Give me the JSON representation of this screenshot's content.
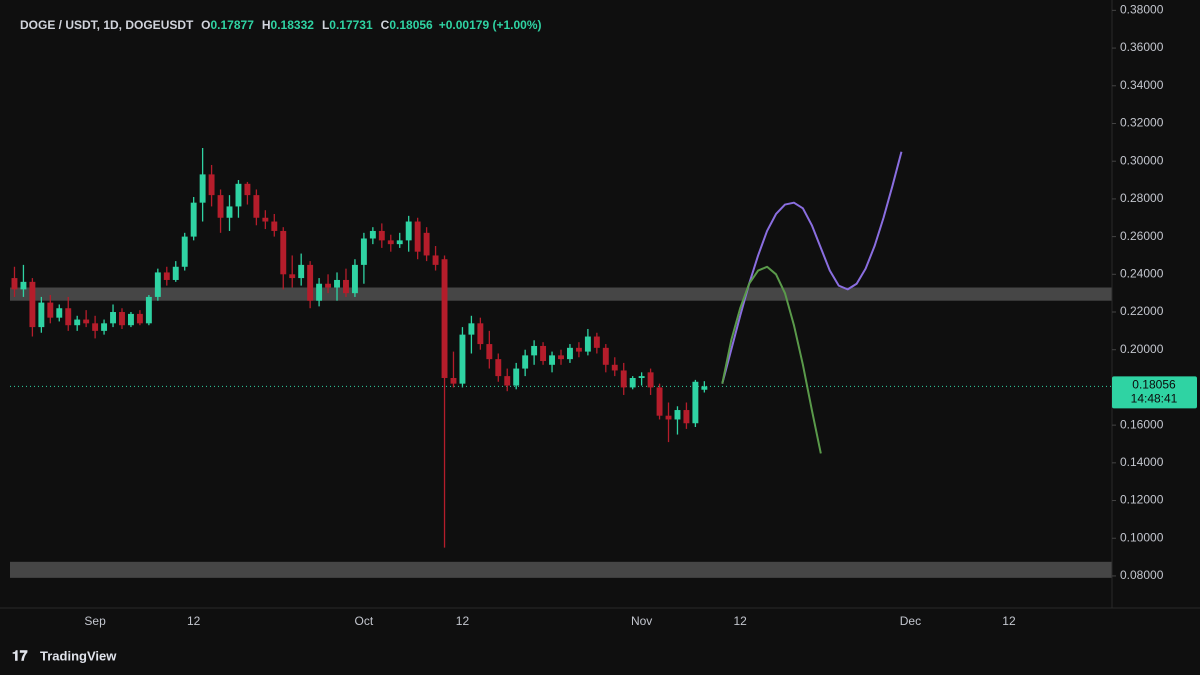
{
  "chart_data": {
    "type": "candlestick",
    "header": {
      "symbol": "DOGE / USDT, 1D, DOGEUSDT",
      "ohlc": [
        {
          "label": "O",
          "value": 0.17877
        },
        {
          "label": "H",
          "value": 0.18332
        },
        {
          "label": "L",
          "value": 0.17731
        },
        {
          "label": "C",
          "value": 0.18056
        }
      ],
      "change": "+0.00179 (+1.00%)"
    },
    "brand": "TradingView",
    "categories": [
      null,
      null,
      null,
      null,
      null,
      null,
      null,
      null,
      null,
      "Sep",
      null,
      null,
      null,
      null,
      null,
      null,
      null,
      null,
      null,
      null,
      "12",
      null,
      null,
      null,
      null,
      null,
      null,
      null,
      null,
      null,
      null,
      null,
      null,
      null,
      null,
      null,
      null,
      null,
      null,
      "Oct",
      null,
      null,
      null,
      null,
      null,
      null,
      null,
      null,
      null,
      null,
      "12",
      null,
      null,
      null,
      null,
      null,
      null,
      null,
      null,
      null,
      null,
      null,
      null,
      null,
      null,
      null,
      null,
      null,
      null,
      null,
      "Nov",
      null,
      null,
      null,
      null,
      null,
      null,
      null,
      null,
      null,
      null,
      "12",
      null,
      null,
      null,
      null,
      null,
      null,
      null,
      null,
      null,
      null,
      null,
      null,
      null,
      null,
      null,
      null,
      null,
      null,
      "Dec",
      null,
      null,
      null,
      null,
      null,
      null,
      null,
      null,
      null,
      null,
      "12",
      null,
      null,
      null,
      null,
      null,
      null,
      null,
      null,
      null,
      null,
      null
    ],
    "open": [
      0.238,
      0.232,
      0.236,
      0.212,
      0.225,
      0.217,
      0.222,
      0.213,
      0.216,
      0.214,
      0.21,
      0.214,
      0.22,
      0.213,
      0.219,
      0.214,
      0.228,
      0.241,
      0.237,
      0.244,
      0.26,
      0.278,
      0.293,
      0.282,
      0.27,
      0.276,
      0.288,
      0.282,
      0.27,
      0.268,
      0.263,
      0.24,
      0.238,
      0.245,
      0.226,
      0.235,
      0.233,
      0.237,
      0.23,
      0.245,
      0.259,
      0.263,
      0.258,
      0.256,
      0.258,
      0.268,
      0.262,
      0.25,
      0.248,
      0.185,
      0.182,
      0.208,
      0.214,
      0.203,
      0.195,
      0.186,
      0.181,
      0.19,
      0.197,
      0.202,
      0.192,
      0.197,
      0.195,
      0.201,
      0.199,
      0.207,
      0.201,
      0.192,
      0.189,
      0.18,
      0.185,
      0.188,
      0.18,
      0.165,
      0.163,
      0.168,
      0.161,
      0.17877,
      null,
      null,
      null,
      null,
      null,
      null,
      null,
      null,
      null,
      null,
      null,
      null,
      null,
      null,
      null,
      null,
      null,
      null,
      null,
      null,
      null,
      null,
      null,
      null,
      null,
      null,
      null,
      null,
      null,
      null,
      null,
      null,
      null,
      null,
      null,
      null,
      null,
      null,
      null,
      null,
      null,
      null,
      null,
      null,
      null
    ],
    "high": [
      0.244,
      0.245,
      0.238,
      0.228,
      0.229,
      0.224,
      0.228,
      0.218,
      0.221,
      0.218,
      0.216,
      0.224,
      0.222,
      0.22,
      0.221,
      0.229,
      0.243,
      0.244,
      0.247,
      0.262,
      0.281,
      0.307,
      0.298,
      0.285,
      0.282,
      0.29,
      0.289,
      0.285,
      0.274,
      0.272,
      0.265,
      0.25,
      0.251,
      0.247,
      0.238,
      0.24,
      0.241,
      0.243,
      0.248,
      0.262,
      0.265,
      0.267,
      0.261,
      0.262,
      0.271,
      0.27,
      0.265,
      0.255,
      0.25,
      0.199,
      0.212,
      0.218,
      0.217,
      0.21,
      0.198,
      0.19,
      0.193,
      0.2,
      0.205,
      0.204,
      0.199,
      0.2,
      0.203,
      0.204,
      0.211,
      0.209,
      0.203,
      0.196,
      0.193,
      0.186,
      0.188,
      0.19,
      0.182,
      0.172,
      0.17,
      0.172,
      0.184,
      0.18332,
      null,
      null,
      null,
      null,
      null,
      null,
      null,
      null,
      null,
      null,
      null,
      null,
      null,
      null,
      null,
      null,
      null,
      null,
      null,
      null,
      null,
      null,
      null,
      null,
      null,
      null,
      null,
      null,
      null,
      null,
      null,
      null,
      null,
      null,
      null,
      null,
      null,
      null,
      null,
      null,
      null,
      null,
      null,
      null,
      null
    ],
    "low": [
      0.228,
      0.228,
      0.207,
      0.209,
      0.214,
      0.215,
      0.21,
      0.21,
      0.212,
      0.206,
      0.208,
      0.212,
      0.211,
      0.212,
      0.213,
      0.213,
      0.226,
      0.234,
      0.236,
      0.242,
      0.258,
      0.268,
      0.276,
      0.262,
      0.263,
      0.27,
      0.277,
      0.266,
      0.264,
      0.26,
      0.232,
      0.233,
      0.234,
      0.222,
      0.223,
      0.23,
      0.226,
      0.228,
      0.228,
      0.235,
      0.256,
      0.254,
      0.252,
      0.254,
      0.252,
      0.248,
      0.247,
      0.242,
      0.095,
      0.18,
      0.18,
      0.198,
      0.2,
      0.19,
      0.183,
      0.178,
      0.179,
      0.186,
      0.192,
      0.192,
      0.188,
      0.192,
      0.193,
      0.196,
      0.197,
      0.198,
      0.188,
      0.186,
      0.176,
      0.179,
      0.181,
      0.176,
      0.163,
      0.151,
      0.155,
      0.158,
      0.159,
      0.17731,
      null,
      null,
      null,
      null,
      null,
      null,
      null,
      null,
      null,
      null,
      null,
      null,
      null,
      null,
      null,
      null,
      null,
      null,
      null,
      null,
      null,
      null,
      null,
      null,
      null,
      null,
      null,
      null,
      null,
      null,
      null,
      null,
      null,
      null,
      null,
      null,
      null,
      null,
      null,
      null,
      null,
      null,
      null,
      null,
      null
    ],
    "close": [
      0.232,
      0.236,
      0.212,
      0.225,
      0.217,
      0.222,
      0.213,
      0.216,
      0.214,
      0.21,
      0.214,
      0.22,
      0.213,
      0.219,
      0.214,
      0.228,
      0.241,
      0.237,
      0.244,
      0.26,
      0.278,
      0.293,
      0.282,
      0.27,
      0.276,
      0.288,
      0.282,
      0.27,
      0.268,
      0.263,
      0.24,
      0.238,
      0.245,
      0.226,
      0.235,
      0.233,
      0.237,
      0.23,
      0.245,
      0.259,
      0.263,
      0.258,
      0.256,
      0.258,
      0.268,
      0.252,
      0.25,
      0.245,
      0.185,
      0.182,
      0.208,
      0.214,
      0.203,
      0.195,
      0.186,
      0.181,
      0.19,
      0.197,
      0.202,
      0.194,
      0.197,
      0.195,
      0.201,
      0.199,
      0.207,
      0.201,
      0.192,
      0.189,
      0.18,
      0.185,
      0.186,
      0.18,
      0.165,
      0.163,
      0.168,
      0.161,
      0.183,
      0.18056,
      null,
      null,
      null,
      null,
      null,
      null,
      null,
      null,
      null,
      null,
      null,
      null,
      null,
      null,
      null,
      null,
      null,
      null,
      null,
      null,
      null,
      null,
      null,
      null,
      null,
      null,
      null,
      null,
      null,
      null,
      null,
      null,
      null,
      null,
      null,
      null,
      null,
      null,
      null,
      null,
      null,
      null,
      null,
      null,
      null
    ],
    "up_color": "#2fd3a3",
    "down_color": "#b51d2b",
    "projections": [
      {
        "color": "#8a6ee0",
        "values": [
          null,
          null,
          null,
          null,
          null,
          null,
          null,
          null,
          null,
          null,
          null,
          null,
          null,
          null,
          null,
          null,
          null,
          null,
          null,
          null,
          null,
          null,
          null,
          null,
          null,
          null,
          null,
          null,
          null,
          null,
          null,
          null,
          null,
          null,
          null,
          null,
          null,
          null,
          null,
          null,
          null,
          null,
          null,
          null,
          null,
          null,
          null,
          null,
          null,
          null,
          null,
          null,
          null,
          null,
          null,
          null,
          null,
          null,
          null,
          null,
          null,
          null,
          null,
          null,
          null,
          null,
          null,
          null,
          null,
          null,
          null,
          null,
          null,
          null,
          null,
          null,
          null,
          null,
          null,
          0.182,
          0.2,
          0.218,
          0.235,
          0.25,
          0.263,
          0.272,
          0.277,
          0.278,
          0.275,
          0.266,
          0.254,
          0.242,
          0.234,
          0.232,
          0.235,
          0.243,
          0.255,
          0.27,
          0.287,
          0.305,
          null,
          null,
          null,
          null,
          null,
          null,
          null,
          null,
          null,
          null,
          null,
          null,
          null,
          null,
          null,
          null,
          null,
          null,
          null,
          null,
          null,
          null,
          null
        ]
      },
      {
        "color": "#5a9a4a",
        "values": [
          null,
          null,
          null,
          null,
          null,
          null,
          null,
          null,
          null,
          null,
          null,
          null,
          null,
          null,
          null,
          null,
          null,
          null,
          null,
          null,
          null,
          null,
          null,
          null,
          null,
          null,
          null,
          null,
          null,
          null,
          null,
          null,
          null,
          null,
          null,
          null,
          null,
          null,
          null,
          null,
          null,
          null,
          null,
          null,
          null,
          null,
          null,
          null,
          null,
          null,
          null,
          null,
          null,
          null,
          null,
          null,
          null,
          null,
          null,
          null,
          null,
          null,
          null,
          null,
          null,
          null,
          null,
          null,
          null,
          null,
          null,
          null,
          null,
          null,
          null,
          null,
          null,
          null,
          null,
          0.182,
          0.205,
          0.222,
          0.235,
          0.242,
          0.244,
          0.24,
          0.23,
          0.213,
          0.192,
          0.168,
          0.145,
          null,
          null,
          null,
          null,
          null,
          null,
          null,
          null,
          null,
          null,
          null,
          null,
          null,
          null,
          null,
          null,
          null,
          null,
          null,
          null,
          null,
          null,
          null,
          null,
          null,
          null,
          null,
          null,
          null,
          null,
          null,
          null
        ]
      }
    ],
    "zones": [
      {
        "from": 0.226,
        "to": 0.233
      },
      {
        "from": 0.079,
        "to": 0.0875
      }
    ],
    "zone_color": "#5a5a5a",
    "last_price": 0.18056,
    "countdown": "14:48:41",
    "ylim": [
      0.063,
      0.3855
    ],
    "yticks": [
      {
        "value": 0.08,
        "label": "0.08000"
      },
      {
        "value": 0.1,
        "label": "0.10000"
      },
      {
        "value": 0.12,
        "label": "0.12000"
      },
      {
        "value": 0.14,
        "label": "0.14000"
      },
      {
        "value": 0.16,
        "label": "0.16000"
      },
      {
        "value": 0.18,
        "label": "0.18000"
      },
      {
        "value": 0.2,
        "label": "0.20000"
      },
      {
        "value": 0.22,
        "label": "0.22000"
      },
      {
        "value": 0.24,
        "label": "0.24000"
      },
      {
        "value": 0.26,
        "label": "0.26000"
      },
      {
        "value": 0.28,
        "label": "0.28000"
      },
      {
        "value": 0.3,
        "label": "0.30000"
      },
      {
        "value": 0.32,
        "label": "0.32000"
      },
      {
        "value": 0.34,
        "label": "0.34000"
      },
      {
        "value": 0.36,
        "label": "0.36000"
      },
      {
        "value": 0.38,
        "label": "0.38000"
      }
    ],
    "grid": false
  }
}
